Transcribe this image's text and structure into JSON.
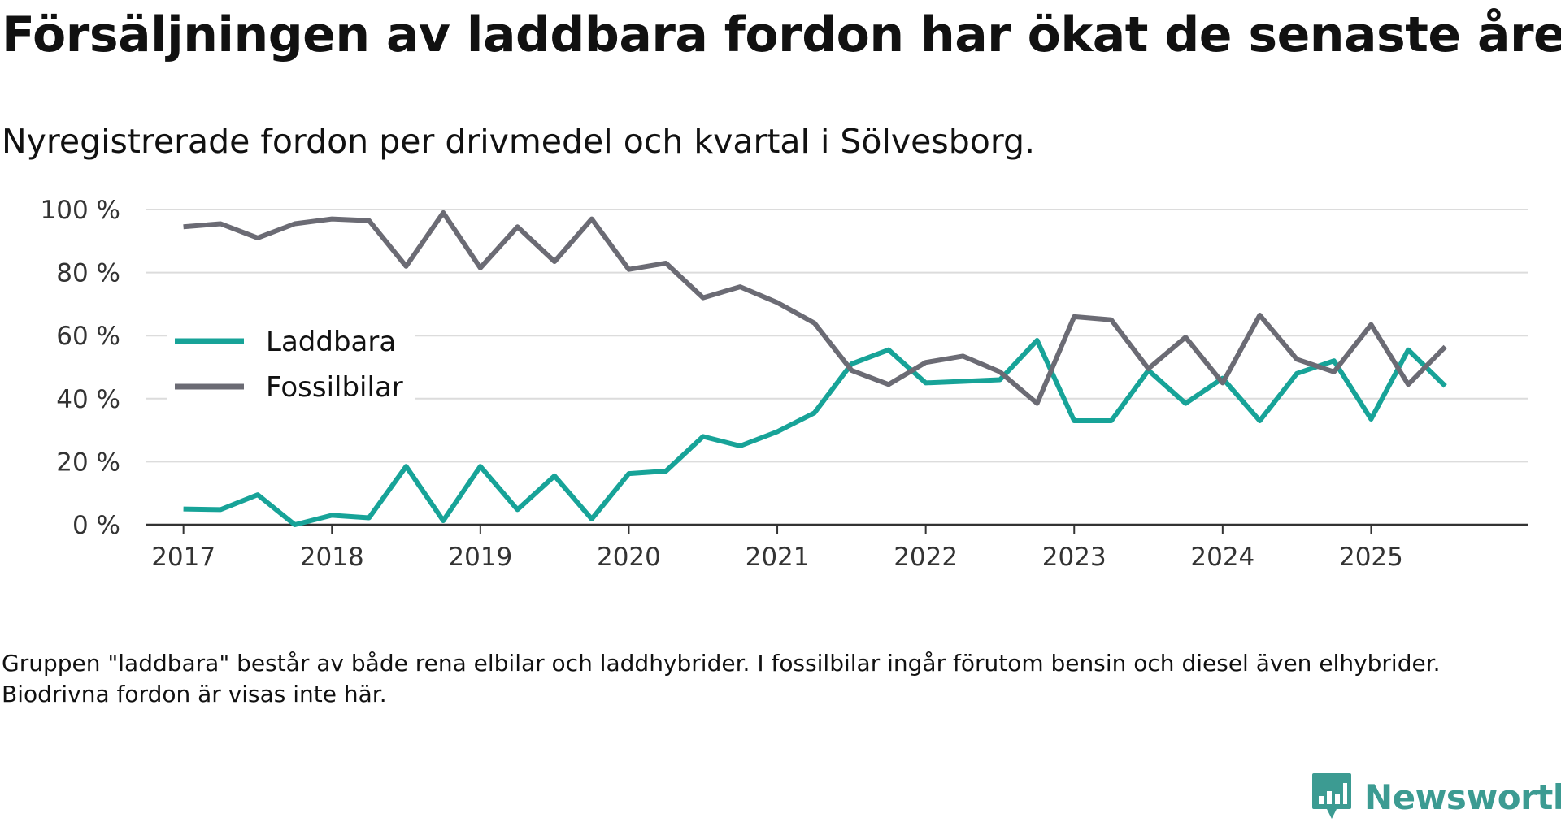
{
  "title": "Försäljningen av laddbara fordon har ökat de senaste åren",
  "subtitle": "Nyregistrerade fordon per drivmedel och kvartal i Sölvesborg.",
  "note": "Gruppen \"laddbara\" består av både rena elbilar och laddhybrider. I fossilbilar ingår förutom bensin och diesel även elhybrider. Biodrivna fordon är visas inte här.",
  "brand": {
    "name": "Newsworthy",
    "color": "#3c9b92"
  },
  "chart_data": {
    "type": "line",
    "title": "Försäljningen av laddbara fordon har ökat de senaste åren",
    "subtitle": "Nyregistrerade fordon per drivmedel och kvartal i Sölvesborg.",
    "xlabel": "",
    "ylabel": "",
    "ylim": [
      0,
      100
    ],
    "yticks": [
      0,
      20,
      40,
      60,
      80,
      100
    ],
    "ytick_labels": [
      "0 %",
      "20 %",
      "40 %",
      "60 %",
      "80 %",
      "100 %"
    ],
    "xticks": [
      2017,
      2018,
      2019,
      2020,
      2021,
      2022,
      2023,
      2024,
      2025
    ],
    "xtick_labels": [
      "2017",
      "2018",
      "2019",
      "2020",
      "2021",
      "2022",
      "2023",
      "2024",
      "2025"
    ],
    "grid": true,
    "legend_position": "left-center",
    "x": [
      2017,
      2017.25,
      2017.5,
      2017.75,
      2018,
      2018.25,
      2018.5,
      2018.75,
      2019,
      2019.25,
      2019.5,
      2019.75,
      2020,
      2020.25,
      2020.5,
      2020.75,
      2021,
      2021.25,
      2021.5,
      2021.75,
      2022,
      2022.25,
      2022.5,
      2022.75,
      2023,
      2023.25,
      2023.5,
      2023.75,
      2024,
      2024.25,
      2024.5,
      2024.75,
      2025,
      2025.25,
      2025.5
    ],
    "series": [
      {
        "name": "Laddbara",
        "color": "#17a398",
        "values": [
          5,
          4.8,
          9.5,
          0,
          3,
          2.2,
          18.5,
          1.3,
          18.5,
          4.8,
          15.5,
          1.8,
          16.2,
          17,
          28,
          25,
          29.5,
          35.5,
          51,
          55.5,
          45,
          45.5,
          46,
          58.5,
          33,
          33,
          49,
          38.5,
          46.5,
          33,
          48,
          52,
          33.5,
          55.5,
          44
        ]
      },
      {
        "name": "Fossilbilar",
        "color": "#6b6b74",
        "values": [
          94.5,
          95.5,
          91,
          95.5,
          97,
          96.5,
          82,
          99,
          81.5,
          94.5,
          83.5,
          97,
          81,
          83,
          72,
          75.5,
          70.5,
          64,
          49,
          44.5,
          51.5,
          53.5,
          48.5,
          38.5,
          66,
          65,
          49.5,
          59.5,
          45,
          66.5,
          52.5,
          48.5,
          63.5,
          44.5,
          56.5
        ]
      }
    ]
  }
}
